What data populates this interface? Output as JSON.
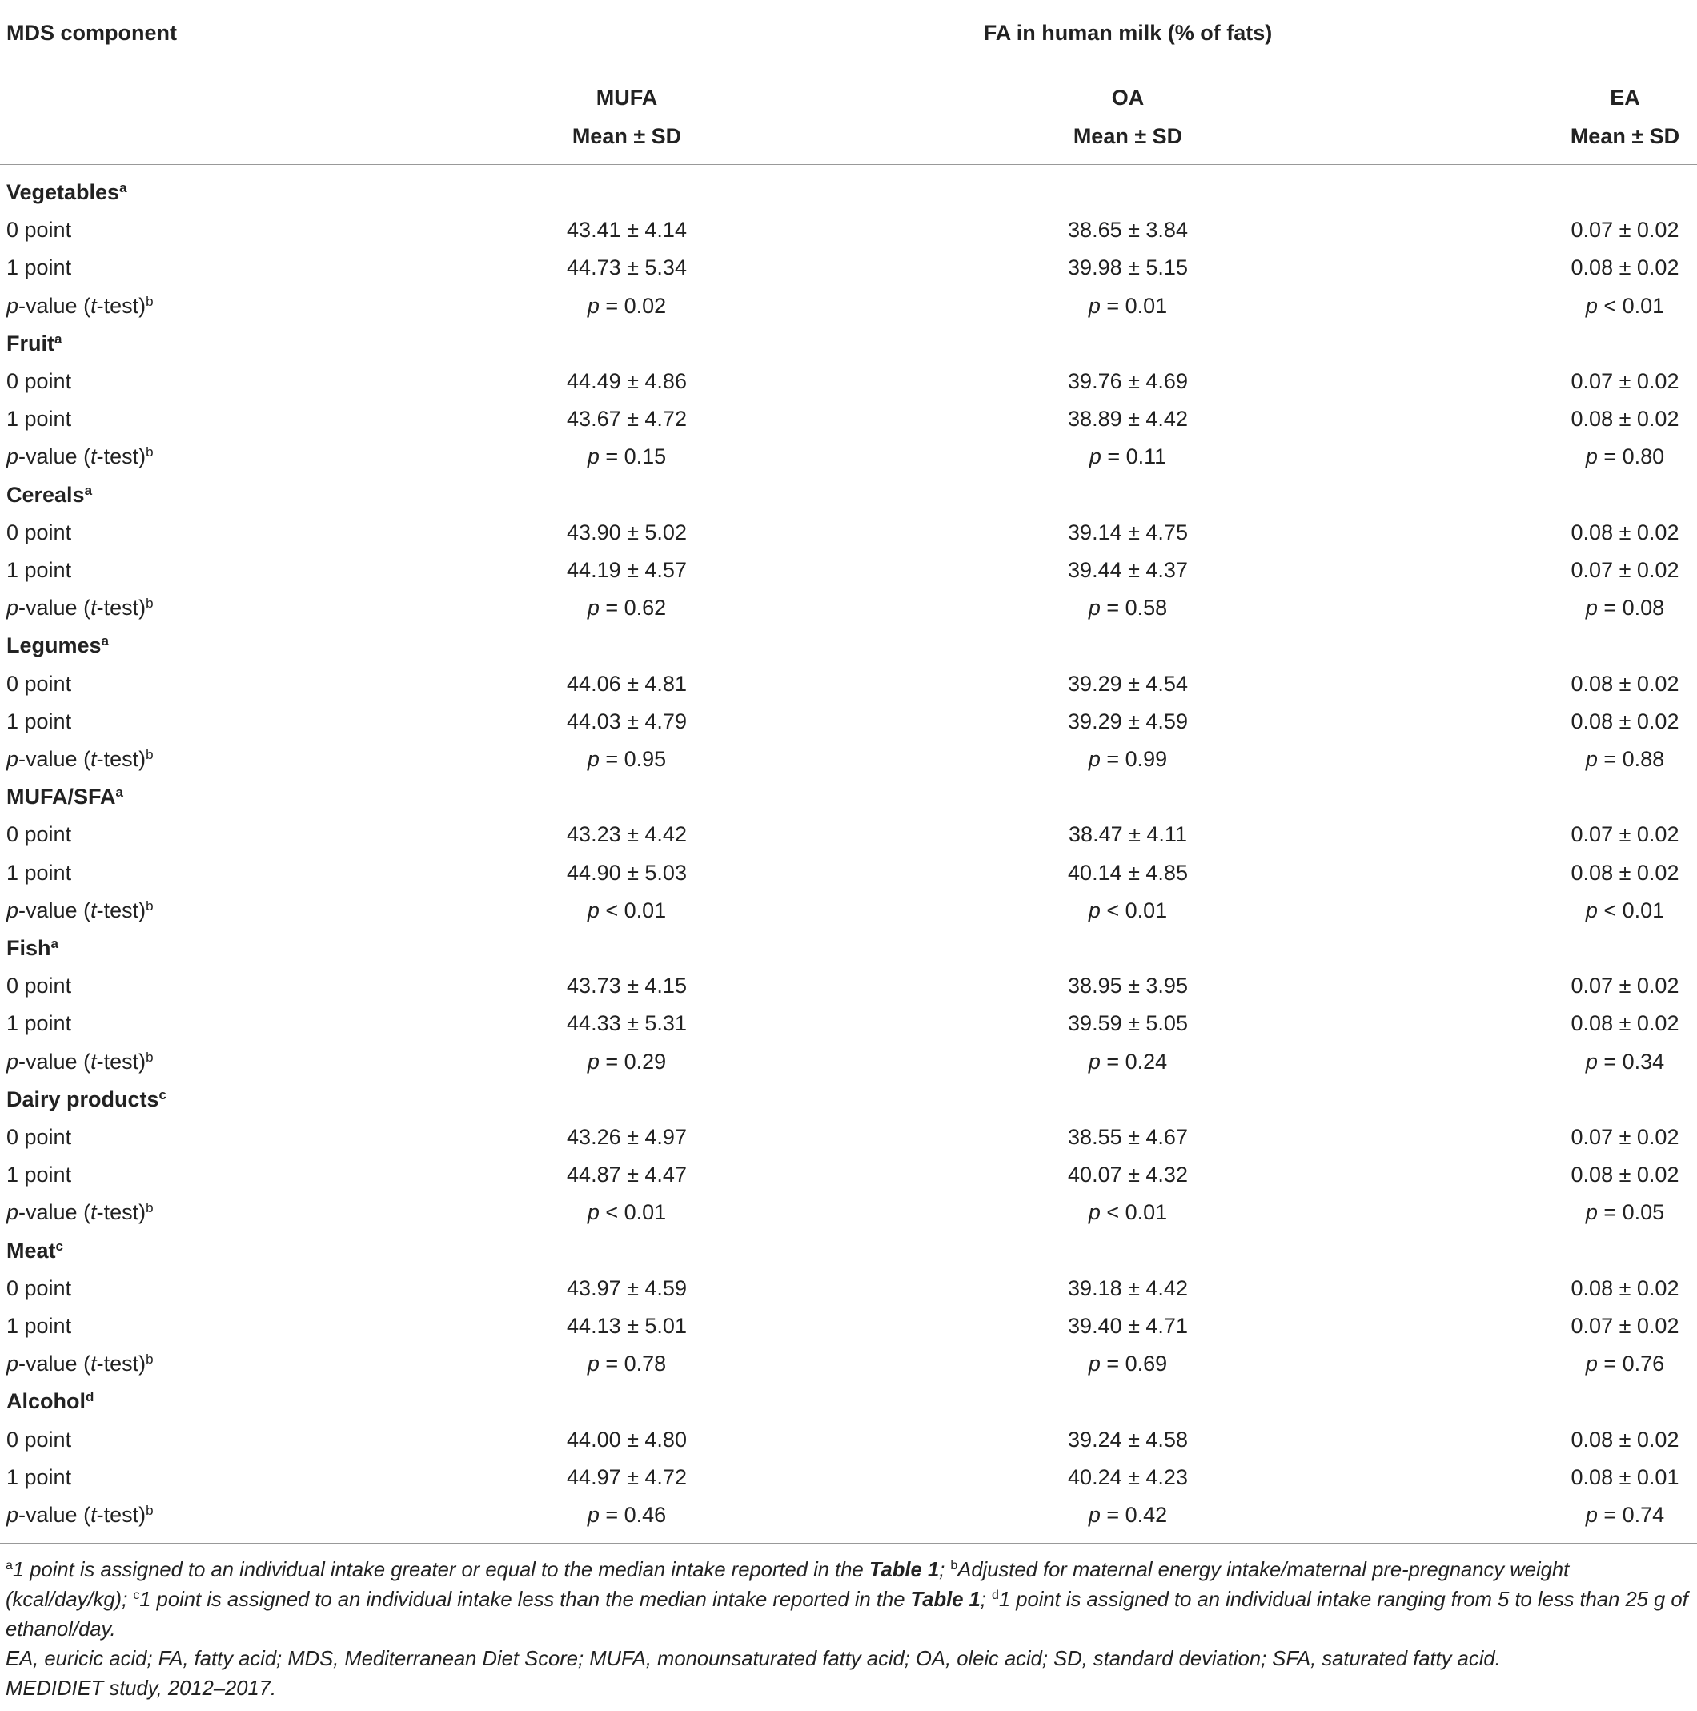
{
  "header": {
    "component": "MDS component",
    "spanner": "FA in human milk (% of fats)",
    "columns": [
      {
        "name": "MUFA",
        "stat": "Mean ± SD"
      },
      {
        "name": "OA",
        "stat": "Mean ± SD"
      },
      {
        "name": "EA",
        "stat": "Mean ± SD"
      }
    ]
  },
  "groups": [
    {
      "name": "Vegetables",
      "sup": "a",
      "rows": [
        {
          "label": "0 point",
          "values": [
            "43.41 ± 4.14",
            "38.65 ± 3.84",
            "0.07 ± 0.02"
          ]
        },
        {
          "label": "1 point",
          "values": [
            "44.73 ± 5.34",
            "39.98 ± 5.15",
            "0.08 ± 0.02"
          ]
        },
        {
          "label": "p-value (t-test)",
          "sup": "b",
          "values": [
            "p = 0.02",
            "p = 0.01",
            "p < 0.01"
          ]
        }
      ]
    },
    {
      "name": "Fruit",
      "sup": "a",
      "rows": [
        {
          "label": "0 point",
          "values": [
            "44.49 ± 4.86",
            "39.76 ± 4.69",
            "0.07 ± 0.02"
          ]
        },
        {
          "label": "1 point",
          "values": [
            "43.67 ± 4.72",
            "38.89 ± 4.42",
            "0.08 ± 0.02"
          ]
        },
        {
          "label": "p-value (t-test)",
          "sup": "b",
          "values": [
            "p = 0.15",
            "p = 0.11",
            "p = 0.80"
          ]
        }
      ]
    },
    {
      "name": "Cereals",
      "sup": "a",
      "rows": [
        {
          "label": "0 point",
          "values": [
            "43.90 ± 5.02",
            "39.14 ± 4.75",
            "0.08 ± 0.02"
          ]
        },
        {
          "label": "1 point",
          "values": [
            "44.19 ± 4.57",
            "39.44 ± 4.37",
            "0.07 ± 0.02"
          ]
        },
        {
          "label": "p-value (t-test)",
          "sup": "b",
          "values": [
            "p = 0.62",
            "p = 0.58",
            "p = 0.08"
          ]
        }
      ]
    },
    {
      "name": "Legumes",
      "sup": "a",
      "rows": [
        {
          "label": "0 point",
          "values": [
            "44.06 ± 4.81",
            "39.29 ± 4.54",
            "0.08 ± 0.02"
          ]
        },
        {
          "label": "1 point",
          "values": [
            "44.03 ± 4.79",
            "39.29 ± 4.59",
            "0.08 ± 0.02"
          ]
        },
        {
          "label": "p-value (t-test)",
          "sup": "b",
          "values": [
            "p = 0.95",
            "p = 0.99",
            "p = 0.88"
          ]
        }
      ]
    },
    {
      "name": "MUFA/SFA",
      "sup": "a",
      "rows": [
        {
          "label": "0 point",
          "values": [
            "43.23 ± 4.42",
            "38.47 ± 4.11",
            "0.07 ± 0.02"
          ]
        },
        {
          "label": "1 point",
          "values": [
            "44.90 ± 5.03",
            "40.14 ± 4.85",
            "0.08 ± 0.02"
          ]
        },
        {
          "label": "p-value (t-test)",
          "sup": "b",
          "values": [
            "p < 0.01",
            "p < 0.01",
            "p < 0.01"
          ]
        }
      ]
    },
    {
      "name": "Fish",
      "sup": "a",
      "rows": [
        {
          "label": "0 point",
          "values": [
            "43.73 ± 4.15",
            "38.95 ± 3.95",
            "0.07 ± 0.02"
          ]
        },
        {
          "label": "1 point",
          "values": [
            "44.33 ± 5.31",
            "39.59 ± 5.05",
            "0.08 ± 0.02"
          ]
        },
        {
          "label": "p-value (t-test)",
          "sup": "b",
          "values": [
            "p = 0.29",
            "p = 0.24",
            "p = 0.34"
          ]
        }
      ]
    },
    {
      "name": "Dairy products",
      "sup": "c",
      "rows": [
        {
          "label": "0 point",
          "values": [
            "43.26 ± 4.97",
            "38.55 ± 4.67",
            "0.07 ± 0.02"
          ]
        },
        {
          "label": "1 point",
          "values": [
            "44.87 ± 4.47",
            "40.07 ± 4.32",
            "0.08 ± 0.02"
          ]
        },
        {
          "label": "p-value (t-test)",
          "sup": "b",
          "values": [
            "p < 0.01",
            "p < 0.01",
            "p = 0.05"
          ]
        }
      ]
    },
    {
      "name": "Meat",
      "sup": "c",
      "rows": [
        {
          "label": "0 point",
          "values": [
            "43.97 ± 4.59",
            "39.18 ± 4.42",
            "0.08 ± 0.02"
          ]
        },
        {
          "label": "1 point",
          "values": [
            "44.13 ± 5.01",
            "39.40 ± 4.71",
            "0.07 ± 0.02"
          ]
        },
        {
          "label": "p-value (t-test)",
          "sup": "b",
          "values": [
            "p = 0.78",
            "p = 0.69",
            "p = 0.76"
          ]
        }
      ]
    },
    {
      "name": "Alcohol",
      "sup": "d",
      "rows": [
        {
          "label": "0 point",
          "values": [
            "44.00 ± 4.80",
            "39.24 ± 4.58",
            "0.08 ± 0.02"
          ]
        },
        {
          "label": "1 point",
          "values": [
            "44.97 ± 4.72",
            "40.24 ± 4.23",
            "0.08 ± 0.01"
          ]
        },
        {
          "label": "p-value (t-test)",
          "sup": "b",
          "values": [
            "p = 0.46",
            "p = 0.42",
            "p = 0.74"
          ]
        }
      ]
    }
  ],
  "footnotes": [
    [
      {
        "sup": "a"
      },
      {
        "text": "1 point is assigned to an individual intake greater or equal to the median intake reported in the "
      },
      {
        "bold": "Table 1"
      },
      {
        "text": "; "
      },
      {
        "sup": "b"
      },
      {
        "text": "Adjusted for maternal energy intake/maternal pre-pregnancy weight (kcal/day/kg); "
      },
      {
        "sup": "c"
      },
      {
        "text": "1 point is assigned to an individual intake less than the median intake reported in the "
      },
      {
        "bold": "Table 1"
      },
      {
        "text": "; "
      },
      {
        "sup": "d"
      },
      {
        "text": "1 point is assigned to an individual intake ranging from 5 to less than 25 g of ethanol/day."
      }
    ],
    [
      {
        "text": "EA, euricic acid; FA, fatty acid; MDS, Mediterranean Diet Score; MUFA, monounsaturated fatty acid; OA, oleic acid; SD, standard deviation; SFA, saturated fatty acid."
      }
    ],
    [
      {
        "text": "MEDIDIET study, 2012–2017."
      }
    ]
  ]
}
